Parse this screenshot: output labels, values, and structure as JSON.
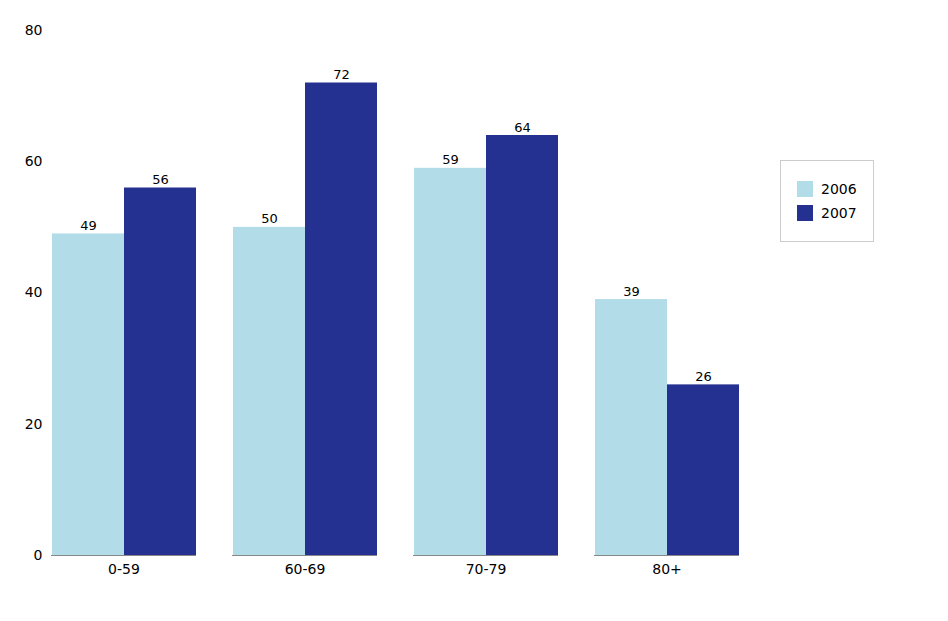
{
  "chart_data": {
    "type": "bar",
    "categories": [
      "0-59",
      "60-69",
      "70-79",
      "80+"
    ],
    "series": [
      {
        "name": "2006",
        "color": "#b2dce8",
        "values": [
          49,
          50,
          59,
          39
        ]
      },
      {
        "name": "2007",
        "color": "#253190",
        "values": [
          56,
          72,
          64,
          26
        ]
      }
    ],
    "ylim": [
      0,
      80
    ],
    "yticks": [
      0,
      20,
      40,
      60,
      80
    ],
    "grid": false,
    "legend": "right",
    "data_labels": true
  }
}
